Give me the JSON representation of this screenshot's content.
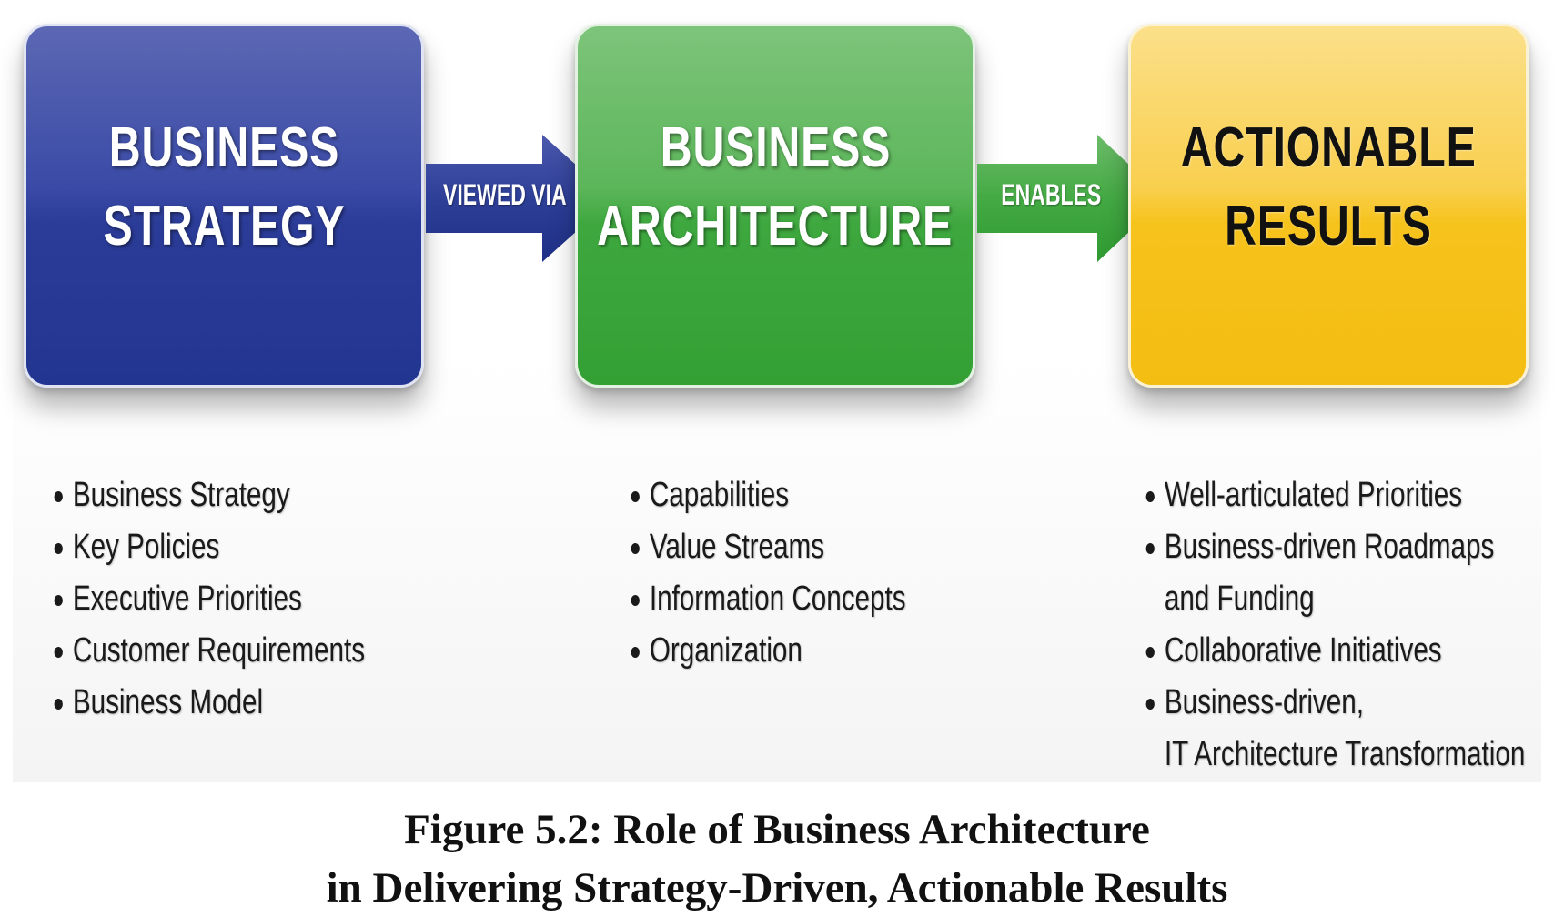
{
  "boxes": {
    "strategy": {
      "line1": "BUSINESS",
      "line2": "STRATEGY"
    },
    "architecture": {
      "line1": "BUSINESS",
      "line2": "ARCHITECTURE"
    },
    "results": {
      "line1": "ACTIONABLE",
      "line2": "RESULTS"
    }
  },
  "arrows": {
    "first": "VIEWED VIA",
    "second": "ENABLES"
  },
  "lists": {
    "strategy": [
      "Business Strategy",
      "Key Policies",
      "Executive Priorities",
      "Customer Requirements",
      "Business Model"
    ],
    "architecture": [
      "Capabilities",
      "Value Streams",
      "Information Concepts",
      "Organization"
    ],
    "results": [
      "Well-articulated Priorities",
      "Business-driven Roadmaps",
      "and Funding",
      "Collaborative Initiatives",
      "Business-driven,",
      "IT Architecture Transformation"
    ]
  },
  "caption": {
    "line1": "Figure 5.2: Role of Business Architecture",
    "line2": "in Delivering Strategy-Driven, Actionable Results"
  },
  "colors": {
    "strategy": "#2b3c98",
    "architecture": "#3ea83f",
    "results": "#f6c31c"
  }
}
